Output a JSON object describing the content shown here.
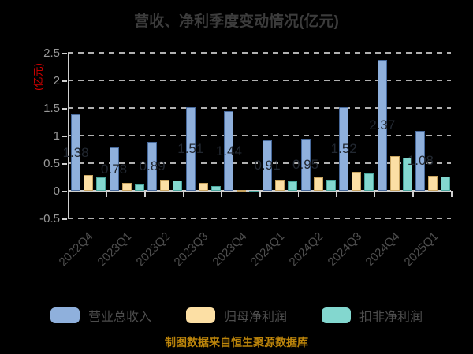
{
  "title": "营收、净利季度变动情况(亿元)",
  "y_axis_unit": "(亿元)",
  "footer_note": "制图数据来自恒生聚源数据库",
  "chart_data": {
    "type": "bar",
    "title": "营收、净利季度变动情况(亿元)",
    "categories": [
      "2022Q4",
      "2023Q1",
      "2023Q2",
      "2023Q3",
      "2023Q4",
      "2024Q1",
      "2024Q2",
      "2024Q3",
      "2024Q4",
      "2025Q1"
    ],
    "series": [
      {
        "name": "营业总收入",
        "color": "#8fb0dc",
        "border": "#47699b",
        "values": [
          1.38,
          0.78,
          0.89,
          1.51,
          1.44,
          0.91,
          0.95,
          1.52,
          2.37,
          1.08
        ],
        "labels": [
          "1.38",
          "0.78",
          "0.89",
          "1.51",
          "1.44",
          "0.91",
          "0.95",
          "1.52",
          "2.37",
          "1.08"
        ]
      },
      {
        "name": "归母净利润",
        "color": "#fcdfa4",
        "border": "#c7a35f",
        "values": [
          0.29,
          0.15,
          0.2,
          0.15,
          0.02,
          0.2,
          0.24,
          0.35,
          0.63,
          0.27
        ]
      },
      {
        "name": "扣非净利润",
        "color": "#83d7cf",
        "border": "#49a59c",
        "values": [
          0.25,
          0.12,
          0.19,
          0.09,
          -0.03,
          0.17,
          0.2,
          0.31,
          0.6,
          0.26
        ]
      }
    ],
    "ylim": [
      -0.5,
      2.5
    ],
    "ytick_values": [
      2.5,
      2,
      1.5,
      1,
      0.5,
      0,
      -0.5
    ],
    "ytick_labels": [
      "2.5",
      "2",
      "1.5",
      "1",
      "0.5",
      "0",
      "-0.5"
    ],
    "grid": "horizontal-dashed",
    "legend_position": "bottom"
  },
  "colors": {
    "background": "#000000",
    "title_text": "#3c3c3c",
    "y_unit_text": "#d40000",
    "ytick_text": "#999999",
    "xtick_text": "#4e4e4e",
    "grid_line": "#b0b0b0",
    "axis_line": "#cfcfcf",
    "bar_value_text": "#222831",
    "legend_text": "#4d4d4d",
    "footer_text": "#bd850b"
  }
}
